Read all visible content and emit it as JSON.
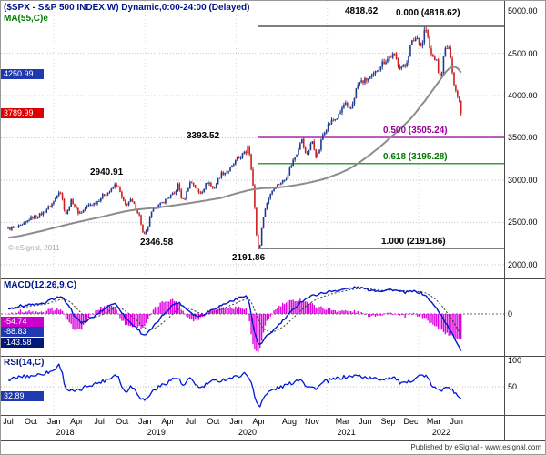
{
  "window": {
    "title_line": "($SPX - S&P 500 INDEX,W) Dynamic,0:00-24:00 (Delayed)",
    "overlay_label": "MA(55,C)e"
  },
  "watermark": "© eSignal, 2011",
  "footer": {
    "published": "Published by eSignal - www.esignal.com"
  },
  "price_axis": {
    "labels": [
      "5000.00",
      "4500.00",
      "4000.00",
      "3500.00",
      "3000.00",
      "2500.00",
      "2000.00"
    ],
    "values": [
      5000,
      4500,
      4000,
      3500,
      3000,
      2500,
      2000
    ],
    "ma_badge": {
      "text": "4250.99",
      "value": 4250.99,
      "color": "#2038b0"
    },
    "last_badge": {
      "text": "3789.99",
      "value": 3789.99,
      "color": "#e00000"
    }
  },
  "annotations": {
    "peak": "4818.62",
    "fib0": "0.000 (4818.62)",
    "fib50": "0.500 (3505.24)",
    "fib618": "0.618 (3195.28)",
    "fib100": "1.000 (2191.86)",
    "high2020": "3393.52",
    "high2018": "2940.91",
    "low2018": "2346.58",
    "low2020": "2191.86"
  },
  "macd": {
    "label": "MACD(12,26,9,C)",
    "zero": "0",
    "badges": [
      {
        "text": "-54.74",
        "color": "#cc00cc"
      },
      {
        "text": "-88.83",
        "color": "#2038b0"
      },
      {
        "text": "-143.58",
        "color": "#001877"
      }
    ]
  },
  "rsi": {
    "label": "RSI(14,C)",
    "levels": [
      "100",
      "50"
    ],
    "level_values": [
      100,
      50
    ],
    "badge": {
      "text": "32.89",
      "color": "#2038b0"
    }
  },
  "xaxis": {
    "ticks": [
      {
        "label": "Jul",
        "m": 0
      },
      {
        "label": "Oct",
        "m": 3
      },
      {
        "label": "Jan",
        "m": 6
      },
      {
        "label": "Apr",
        "m": 9
      },
      {
        "label": "Jul",
        "m": 12
      },
      {
        "label": "Oct",
        "m": 15
      },
      {
        "label": "Jan",
        "m": 18
      },
      {
        "label": "Apr",
        "m": 21
      },
      {
        "label": "Jul",
        "m": 24
      },
      {
        "label": "Oct",
        "m": 27
      },
      {
        "label": "Jan",
        "m": 30
      },
      {
        "label": "Apr",
        "m": 33
      },
      {
        "label": "Aug",
        "m": 37
      },
      {
        "label": "Nov",
        "m": 40
      },
      {
        "label": "Mar",
        "m": 44
      },
      {
        "label": "Jun",
        "m": 47
      },
      {
        "label": "Sep",
        "m": 50
      },
      {
        "label": "Dec",
        "m": 53
      },
      {
        "label": "Mar",
        "m": 56
      },
      {
        "label": "Jun",
        "m": 59
      }
    ],
    "years": [
      {
        "label": "2018",
        "m": 7.5
      },
      {
        "label": "2019",
        "m": 19.5
      },
      {
        "label": "2020",
        "m": 31.5
      },
      {
        "label": "2021",
        "m": 44.5
      },
      {
        "label": "2022",
        "m": 57
      }
    ]
  },
  "chart_data": {
    "type": "candlestick",
    "title": "($SPX - S&P 500 INDEX,W) Dynamic,0:00-24:00 (Delayed)",
    "timeframe": "weekly",
    "x_domain": "months since Jul 2017; 0 = Jul 2017, 59.8 = mid-Jun 2022",
    "ylim": [
      1838,
      5118
    ],
    "grid": true,
    "price_anchors": [
      [
        0,
        2425
      ],
      [
        1,
        2440
      ],
      [
        2,
        2470
      ],
      [
        3,
        2555
      ],
      [
        4,
        2580
      ],
      [
        5,
        2650
      ],
      [
        6,
        2745
      ],
      [
        6.8,
        2872
      ],
      [
        7.6,
        2605
      ],
      [
        8.3,
        2750
      ],
      [
        9.3,
        2615
      ],
      [
        10.5,
        2700
      ],
      [
        11.5,
        2735
      ],
      [
        12.5,
        2820
      ],
      [
        13.5,
        2875
      ],
      [
        14.3,
        2941
      ],
      [
        15.3,
        2720
      ],
      [
        16.2,
        2750
      ],
      [
        17.3,
        2570
      ],
      [
        17.9,
        2347
      ],
      [
        19,
        2640
      ],
      [
        20,
        2710
      ],
      [
        21,
        2790
      ],
      [
        22,
        2850
      ],
      [
        22.3,
        2945
      ],
      [
        23,
        2760
      ],
      [
        24,
        2975
      ],
      [
        25.2,
        2850
      ],
      [
        26.3,
        2975
      ],
      [
        27,
        2905
      ],
      [
        28,
        3070
      ],
      [
        29,
        3110
      ],
      [
        30,
        3230
      ],
      [
        31.3,
        3330
      ],
      [
        31.6,
        3394
      ],
      [
        32.2,
        2950
      ],
      [
        32.9,
        2192
      ],
      [
        33.6,
        2580
      ],
      [
        34.5,
        2840
      ],
      [
        35.5,
        2950
      ],
      [
        36.5,
        3020
      ],
      [
        37.3,
        3190
      ],
      [
        38.1,
        3350
      ],
      [
        38.6,
        3480
      ],
      [
        39.2,
        3300
      ],
      [
        40,
        3450
      ],
      [
        40.6,
        3280
      ],
      [
        41.5,
        3560
      ],
      [
        42.5,
        3690
      ],
      [
        43.5,
        3760
      ],
      [
        44.3,
        3900
      ],
      [
        45,
        3830
      ],
      [
        46,
        4120
      ],
      [
        47,
        4180
      ],
      [
        48,
        4230
      ],
      [
        49,
        4360
      ],
      [
        50,
        4440
      ],
      [
        50.8,
        4470
      ],
      [
        51.5,
        4350
      ],
      [
        52.3,
        4370
      ],
      [
        53,
        4600
      ],
      [
        53.8,
        4680
      ],
      [
        54.4,
        4590
      ],
      [
        54.9,
        4790
      ],
      [
        55.6,
        4500
      ],
      [
        56.3,
        4420
      ],
      [
        56.9,
        4220
      ],
      [
        57.5,
        4540
      ],
      [
        58.2,
        4480
      ],
      [
        58.7,
        4120
      ],
      [
        59.2,
        4000
      ],
      [
        59.5,
        3900
      ],
      [
        59.8,
        3790
      ]
    ],
    "ma55_anchors": [
      [
        0,
        2320
      ],
      [
        4,
        2390
      ],
      [
        8,
        2480
      ],
      [
        12,
        2560
      ],
      [
        16,
        2640
      ],
      [
        20,
        2680
      ],
      [
        24,
        2730
      ],
      [
        28,
        2790
      ],
      [
        31,
        2865
      ],
      [
        33,
        2900
      ],
      [
        35,
        2910
      ],
      [
        37,
        2930
      ],
      [
        39,
        2960
      ],
      [
        41,
        3000
      ],
      [
        43,
        3060
      ],
      [
        45,
        3140
      ],
      [
        47,
        3260
      ],
      [
        49,
        3400
      ],
      [
        51,
        3560
      ],
      [
        53,
        3730
      ],
      [
        55,
        3950
      ],
      [
        56,
        4080
      ],
      [
        57,
        4200
      ],
      [
        57.6,
        4280
      ],
      [
        58.2,
        4330
      ],
      [
        58.8,
        4340
      ],
      [
        59.3,
        4310
      ],
      [
        59.8,
        4251
      ]
    ],
    "macd_anchors": [
      [
        0,
        20
      ],
      [
        1.5,
        30
      ],
      [
        3,
        35
      ],
      [
        4.5,
        38
      ],
      [
        6,
        58
      ],
      [
        7,
        62
      ],
      [
        8,
        25
      ],
      [
        9.5,
        -30
      ],
      [
        11,
        -15
      ],
      [
        12.5,
        15
      ],
      [
        14,
        38
      ],
      [
        15.5,
        -15
      ],
      [
        17,
        -55
      ],
      [
        18,
        -78
      ],
      [
        19.5,
        -35
      ],
      [
        21,
        15
      ],
      [
        22.3,
        42
      ],
      [
        23.5,
        18
      ],
      [
        25,
        -8
      ],
      [
        26.5,
        12
      ],
      [
        28,
        32
      ],
      [
        30,
        55
      ],
      [
        31.5,
        62
      ],
      [
        32.3,
        -50
      ],
      [
        33,
        -115
      ],
      [
        34,
        -85
      ],
      [
        35.5,
        -45
      ],
      [
        37,
        0
      ],
      [
        38.5,
        45
      ],
      [
        40,
        68
      ],
      [
        41.5,
        80
      ],
      [
        43,
        88
      ],
      [
        44.5,
        95
      ],
      [
        46,
        100
      ],
      [
        47.5,
        92
      ],
      [
        49,
        88
      ],
      [
        50.5,
        92
      ],
      [
        52,
        82
      ],
      [
        53.5,
        85
      ],
      [
        54.8,
        72
      ],
      [
        55.8,
        40
      ],
      [
        56.8,
        5
      ],
      [
        57.6,
        -35
      ],
      [
        58.4,
        -75
      ],
      [
        59.1,
        -110
      ],
      [
        59.8,
        -143.58
      ]
    ],
    "rsi_anchors": [
      [
        0,
        62
      ],
      [
        1.5,
        68
      ],
      [
        3,
        70
      ],
      [
        4.5,
        74
      ],
      [
        6,
        80
      ],
      [
        6.8,
        88
      ],
      [
        7.6,
        48
      ],
      [
        9,
        42
      ],
      [
        10.5,
        52
      ],
      [
        12,
        58
      ],
      [
        13.5,
        66
      ],
      [
        14.3,
        72
      ],
      [
        15.3,
        42
      ],
      [
        16.2,
        50
      ],
      [
        17.9,
        26
      ],
      [
        19,
        42
      ],
      [
        20.5,
        55
      ],
      [
        22.3,
        66
      ],
      [
        23,
        52
      ],
      [
        24,
        64
      ],
      [
        25.2,
        48
      ],
      [
        26.5,
        58
      ],
      [
        28,
        62
      ],
      [
        30,
        68
      ],
      [
        31.6,
        70
      ],
      [
        32.9,
        17
      ],
      [
        33.6,
        30
      ],
      [
        34.5,
        42
      ],
      [
        35.5,
        48
      ],
      [
        37,
        55
      ],
      [
        38.6,
        64
      ],
      [
        39.2,
        52
      ],
      [
        40.6,
        48
      ],
      [
        41.5,
        58
      ],
      [
        43,
        64
      ],
      [
        44.5,
        68
      ],
      [
        46,
        70
      ],
      [
        47.5,
        66
      ],
      [
        49,
        64
      ],
      [
        50.8,
        67
      ],
      [
        51.5,
        58
      ],
      [
        52.3,
        56
      ],
      [
        53.8,
        68
      ],
      [
        54.9,
        70
      ],
      [
        55.8,
        52
      ],
      [
        56.9,
        42
      ],
      [
        57.5,
        52
      ],
      [
        58.2,
        48
      ],
      [
        58.7,
        38
      ],
      [
        59.2,
        34
      ],
      [
        59.5,
        30
      ],
      [
        59.8,
        32.89
      ]
    ],
    "key_values": {
      "high_jan2022": 4818.62,
      "high_feb2020": 3393.52,
      "high_sep2018": 2940.91,
      "low_dec2018": 2346.58,
      "low_mar2020": 2191.86,
      "fib_0500": 3505.24,
      "fib_0618": 3195.28,
      "last_price": 3789.99,
      "ma55_last": 4250.99,
      "macd_last": -143.58,
      "macd_signal_last": -88.83,
      "macd_hist_last": -54.74,
      "rsi_last": 32.89
    }
  }
}
